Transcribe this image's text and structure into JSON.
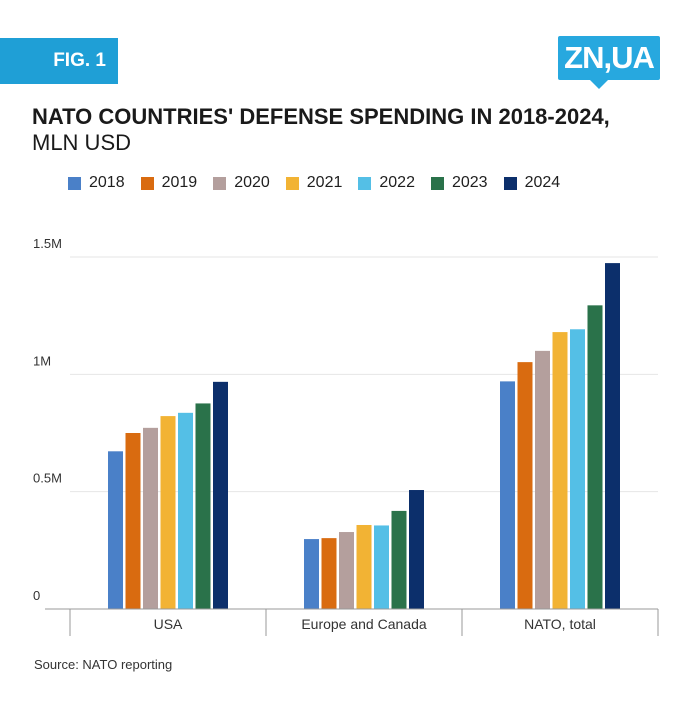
{
  "header": {
    "fig_label": "FIG. 1",
    "logo_text": "ZN,UA",
    "title_bold": "NATO COUNTRIES' DEFENSE SPENDING IN 2018-2024,",
    "title_unit": " MLN USD"
  },
  "source": "Source: NATO reporting",
  "colors": {
    "2018": "#4a80c8",
    "2019": "#d96b10",
    "2020": "#b49f9d",
    "2021": "#f2b334",
    "2022": "#54bfe6",
    "2023": "#2a724a",
    "2024": "#0c2f6b",
    "grid": "#e6e6e6",
    "axis": "#999999"
  },
  "chart_data": {
    "type": "bar",
    "title": "NATO COUNTRIES' DEFENSE SPENDING IN 2018-2024, MLN USD",
    "xlabel": "",
    "ylabel": "",
    "categories": [
      "USA",
      "Europe and Canada",
      "NATO, total"
    ],
    "ylim": [
      0,
      1500000
    ],
    "yticks": [
      {
        "value": 0,
        "label": "0"
      },
      {
        "value": 500000,
        "label": "0.5M"
      },
      {
        "value": 1000000,
        "label": "1M"
      },
      {
        "value": 1500000,
        "label": "1.5M"
      }
    ],
    "grid": true,
    "legend_position": "top",
    "series": [
      {
        "name": "2018",
        "values": [
          672000,
          298000,
          970000
        ]
      },
      {
        "name": "2019",
        "values": [
          750000,
          302000,
          1052000
        ]
      },
      {
        "name": "2020",
        "values": [
          772000,
          328000,
          1100000
        ]
      },
      {
        "name": "2021",
        "values": [
          822000,
          358000,
          1180000
        ]
      },
      {
        "name": "2022",
        "values": [
          836000,
          356000,
          1192000
        ]
      },
      {
        "name": "2023",
        "values": [
          876000,
          418000,
          1294000
        ]
      },
      {
        "name": "2024",
        "values": [
          968000,
          507000,
          1474000
        ]
      }
    ]
  }
}
